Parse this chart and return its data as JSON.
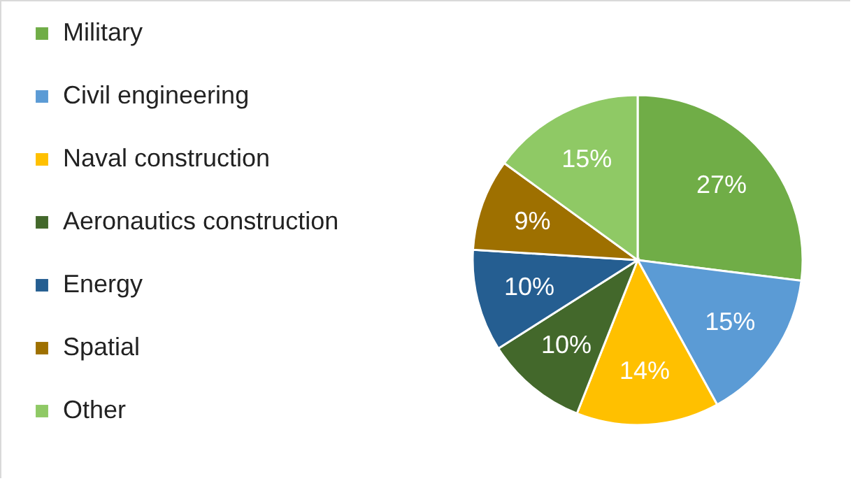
{
  "chart_data": {
    "type": "pie",
    "categories": [
      "Military",
      "Civil engineering",
      "Naval construction",
      "Aeronautics construction",
      "Energy",
      "Spatial",
      "Other"
    ],
    "values": [
      27,
      15,
      14,
      10,
      10,
      9,
      15
    ],
    "value_labels": [
      "27%",
      "15%",
      "14%",
      "10%",
      "10%",
      "9%",
      "15%"
    ],
    "colors": [
      "#70ad47",
      "#5b9bd5",
      "#ffc000",
      "#43682b",
      "#255e91",
      "#9e7000",
      "#8fc965"
    ],
    "legend": "left"
  }
}
